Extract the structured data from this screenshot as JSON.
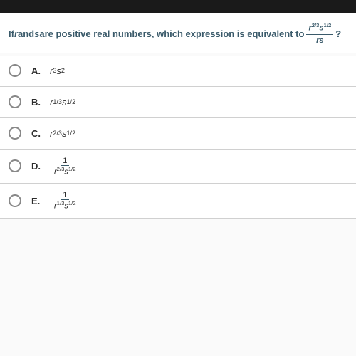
{
  "colors": {
    "topbar": "#1a1a1a",
    "question_text": "#3a5a6a",
    "background": "#fafafa",
    "option_bg": "#ffffff",
    "border": "#d0d0d0",
    "radio_border": "#888888",
    "text": "#2a2a2a"
  },
  "question": {
    "prefix": "If ",
    "var1": "r",
    "mid1": " and ",
    "var2": "s",
    "mid2": " are positive real numbers, which expression is equivalent to ",
    "fraction_num_r_exp": "2/3",
    "fraction_num_s_exp": "1/2",
    "fraction_den": "rs",
    "suffix": "?"
  },
  "options": [
    {
      "label": "A.",
      "type": "exp",
      "r_exp": "3",
      "s_exp": "2"
    },
    {
      "label": "B.",
      "type": "exp",
      "r_exp": "1/3",
      "s_exp": "1/2"
    },
    {
      "label": "C.",
      "type": "exp",
      "r_exp": "2/3",
      "s_exp": "1/2"
    },
    {
      "label": "D.",
      "type": "frac",
      "num": "1",
      "r_exp": "2/3",
      "s_exp": "1/2"
    },
    {
      "label": "E.",
      "type": "frac",
      "num": "1",
      "r_exp": "1/3",
      "s_exp": "1/2"
    }
  ]
}
